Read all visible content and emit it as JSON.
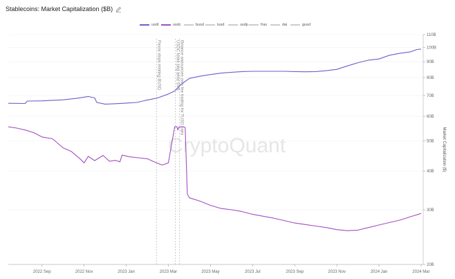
{
  "header": {
    "title": "Stablecoins: Market Capitalization ($B)"
  },
  "watermark": "CryptoQuant",
  "colors": {
    "usdt": "#6a5fc9",
    "usdc": "#a04ec2",
    "inactive": "#cccccc",
    "grid": "#f0f0f0",
    "annotation": "#aaaaaa"
  },
  "chart_data": {
    "type": "line",
    "title": "Stablecoins: Market Capitalization ($B)",
    "xlabel": "",
    "ylabel": "Market Capitalization ($)",
    "y_scale": "log",
    "ylim": [
      20,
      110
    ],
    "y_ticks": [
      {
        "v": 20,
        "label": "20B"
      },
      {
        "v": 30,
        "label": "30B"
      },
      {
        "v": 40,
        "label": "40B"
      },
      {
        "v": 50,
        "label": "50B"
      },
      {
        "v": 60,
        "label": "60B"
      },
      {
        "v": 70,
        "label": "70B"
      },
      {
        "v": 80,
        "label": "80B"
      },
      {
        "v": 90,
        "label": "90B"
      },
      {
        "v": 100,
        "label": "100B"
      },
      {
        "v": 110,
        "label": "110B"
      }
    ],
    "x_unit": "months since 2022-07-01",
    "xlim": [
      0.4,
      20.1
    ],
    "x_ticks": [
      {
        "t": 2.0,
        "label": "2022 Sep"
      },
      {
        "t": 4.0,
        "label": "2022 Nov"
      },
      {
        "t": 6.0,
        "label": "2023 Jan"
      },
      {
        "t": 8.0,
        "label": "2023 Mar"
      },
      {
        "t": 10.0,
        "label": "2023 May"
      },
      {
        "t": 12.0,
        "label": "2023 Jul"
      },
      {
        "t": 14.0,
        "label": "2023 Sep"
      },
      {
        "t": 16.0,
        "label": "2023 Nov"
      },
      {
        "t": 18.0,
        "label": "2024 Jan"
      },
      {
        "t": 20.0,
        "label": "2024 Mar"
      }
    ],
    "legend": [
      "usdt",
      "usdc",
      "busd",
      "tusd",
      "usdp",
      "frax",
      "dai",
      "gusd"
    ],
    "legend_active": [
      "usdt",
      "usdc"
    ],
    "annotations": [
      {
        "t": 7.45,
        "label": "Paxos stops minting BUSD"
      },
      {
        "t": 8.33,
        "label": "USDC loses peg amid SVB"
      },
      {
        "t": 8.52,
        "label": "Binance announces zero fee trading for TUSD pairs"
      }
    ],
    "series": [
      {
        "name": "usdt",
        "t": [
          0.4,
          1.2,
          1.3,
          2.0,
          3.0,
          3.6,
          4.2,
          4.5,
          4.6,
          5.0,
          5.5,
          6.0,
          6.5,
          6.9,
          7.5,
          8.0,
          8.3,
          8.6,
          9.0,
          9.5,
          10.0,
          10.5,
          11.0,
          11.5,
          12.0,
          12.5,
          13.0,
          13.5,
          14.0,
          14.5,
          15.0,
          15.5,
          16.0,
          16.5,
          17.0,
          17.5,
          18.0,
          18.5,
          19.0,
          19.5,
          19.8,
          20.0
        ],
        "v": [
          66.1,
          66.0,
          67.2,
          67.3,
          67.8,
          68.5,
          69.5,
          68.8,
          66.5,
          65.7,
          65.9,
          66.2,
          66.5,
          67.5,
          68.8,
          70.8,
          72.4,
          76.0,
          79.5,
          80.8,
          81.8,
          82.7,
          83.2,
          83.6,
          83.8,
          83.8,
          83.8,
          83.8,
          83.6,
          83.5,
          83.6,
          84.2,
          85.0,
          87.2,
          89.3,
          91.0,
          91.8,
          94.4,
          95.8,
          96.8,
          98.5,
          98.8
        ]
      },
      {
        "name": "usdc",
        "t": [
          0.4,
          0.8,
          1.2,
          1.6,
          2.0,
          2.5,
          3.0,
          3.4,
          3.8,
          4.0,
          4.2,
          4.5,
          4.9,
          5.2,
          5.5,
          5.7,
          5.8,
          6.2,
          6.6,
          7.0,
          7.4,
          7.7,
          7.8,
          8.0,
          8.3,
          8.4,
          8.45,
          8.5,
          8.6,
          8.7,
          8.8,
          8.9,
          9.0,
          9.5,
          10.0,
          10.5,
          11.0,
          11.5,
          12.0,
          12.5,
          13.0,
          13.5,
          14.0,
          14.5,
          15.0,
          15.5,
          16.0,
          16.5,
          17.0,
          17.5,
          18.0,
          18.5,
          19.0,
          19.5,
          20.0
        ],
        "v": [
          55.5,
          55.0,
          54.2,
          53.2,
          51.5,
          50.8,
          47.5,
          46.2,
          43.8,
          42.5,
          44.6,
          43.2,
          44.9,
          43.0,
          43.3,
          42.8,
          45.0,
          44.4,
          44.1,
          43.8,
          42.6,
          41.8,
          42.0,
          42.5,
          55.5,
          55.6,
          54.2,
          55.4,
          55.5,
          55.6,
          55.2,
          33.7,
          32.8,
          32.0,
          31.0,
          30.3,
          30.0,
          29.6,
          29.0,
          28.6,
          28.2,
          27.7,
          27.2,
          26.9,
          26.6,
          26.3,
          25.9,
          25.7,
          25.8,
          26.3,
          26.8,
          27.3,
          27.8,
          28.5,
          29.2
        ]
      }
    ]
  }
}
